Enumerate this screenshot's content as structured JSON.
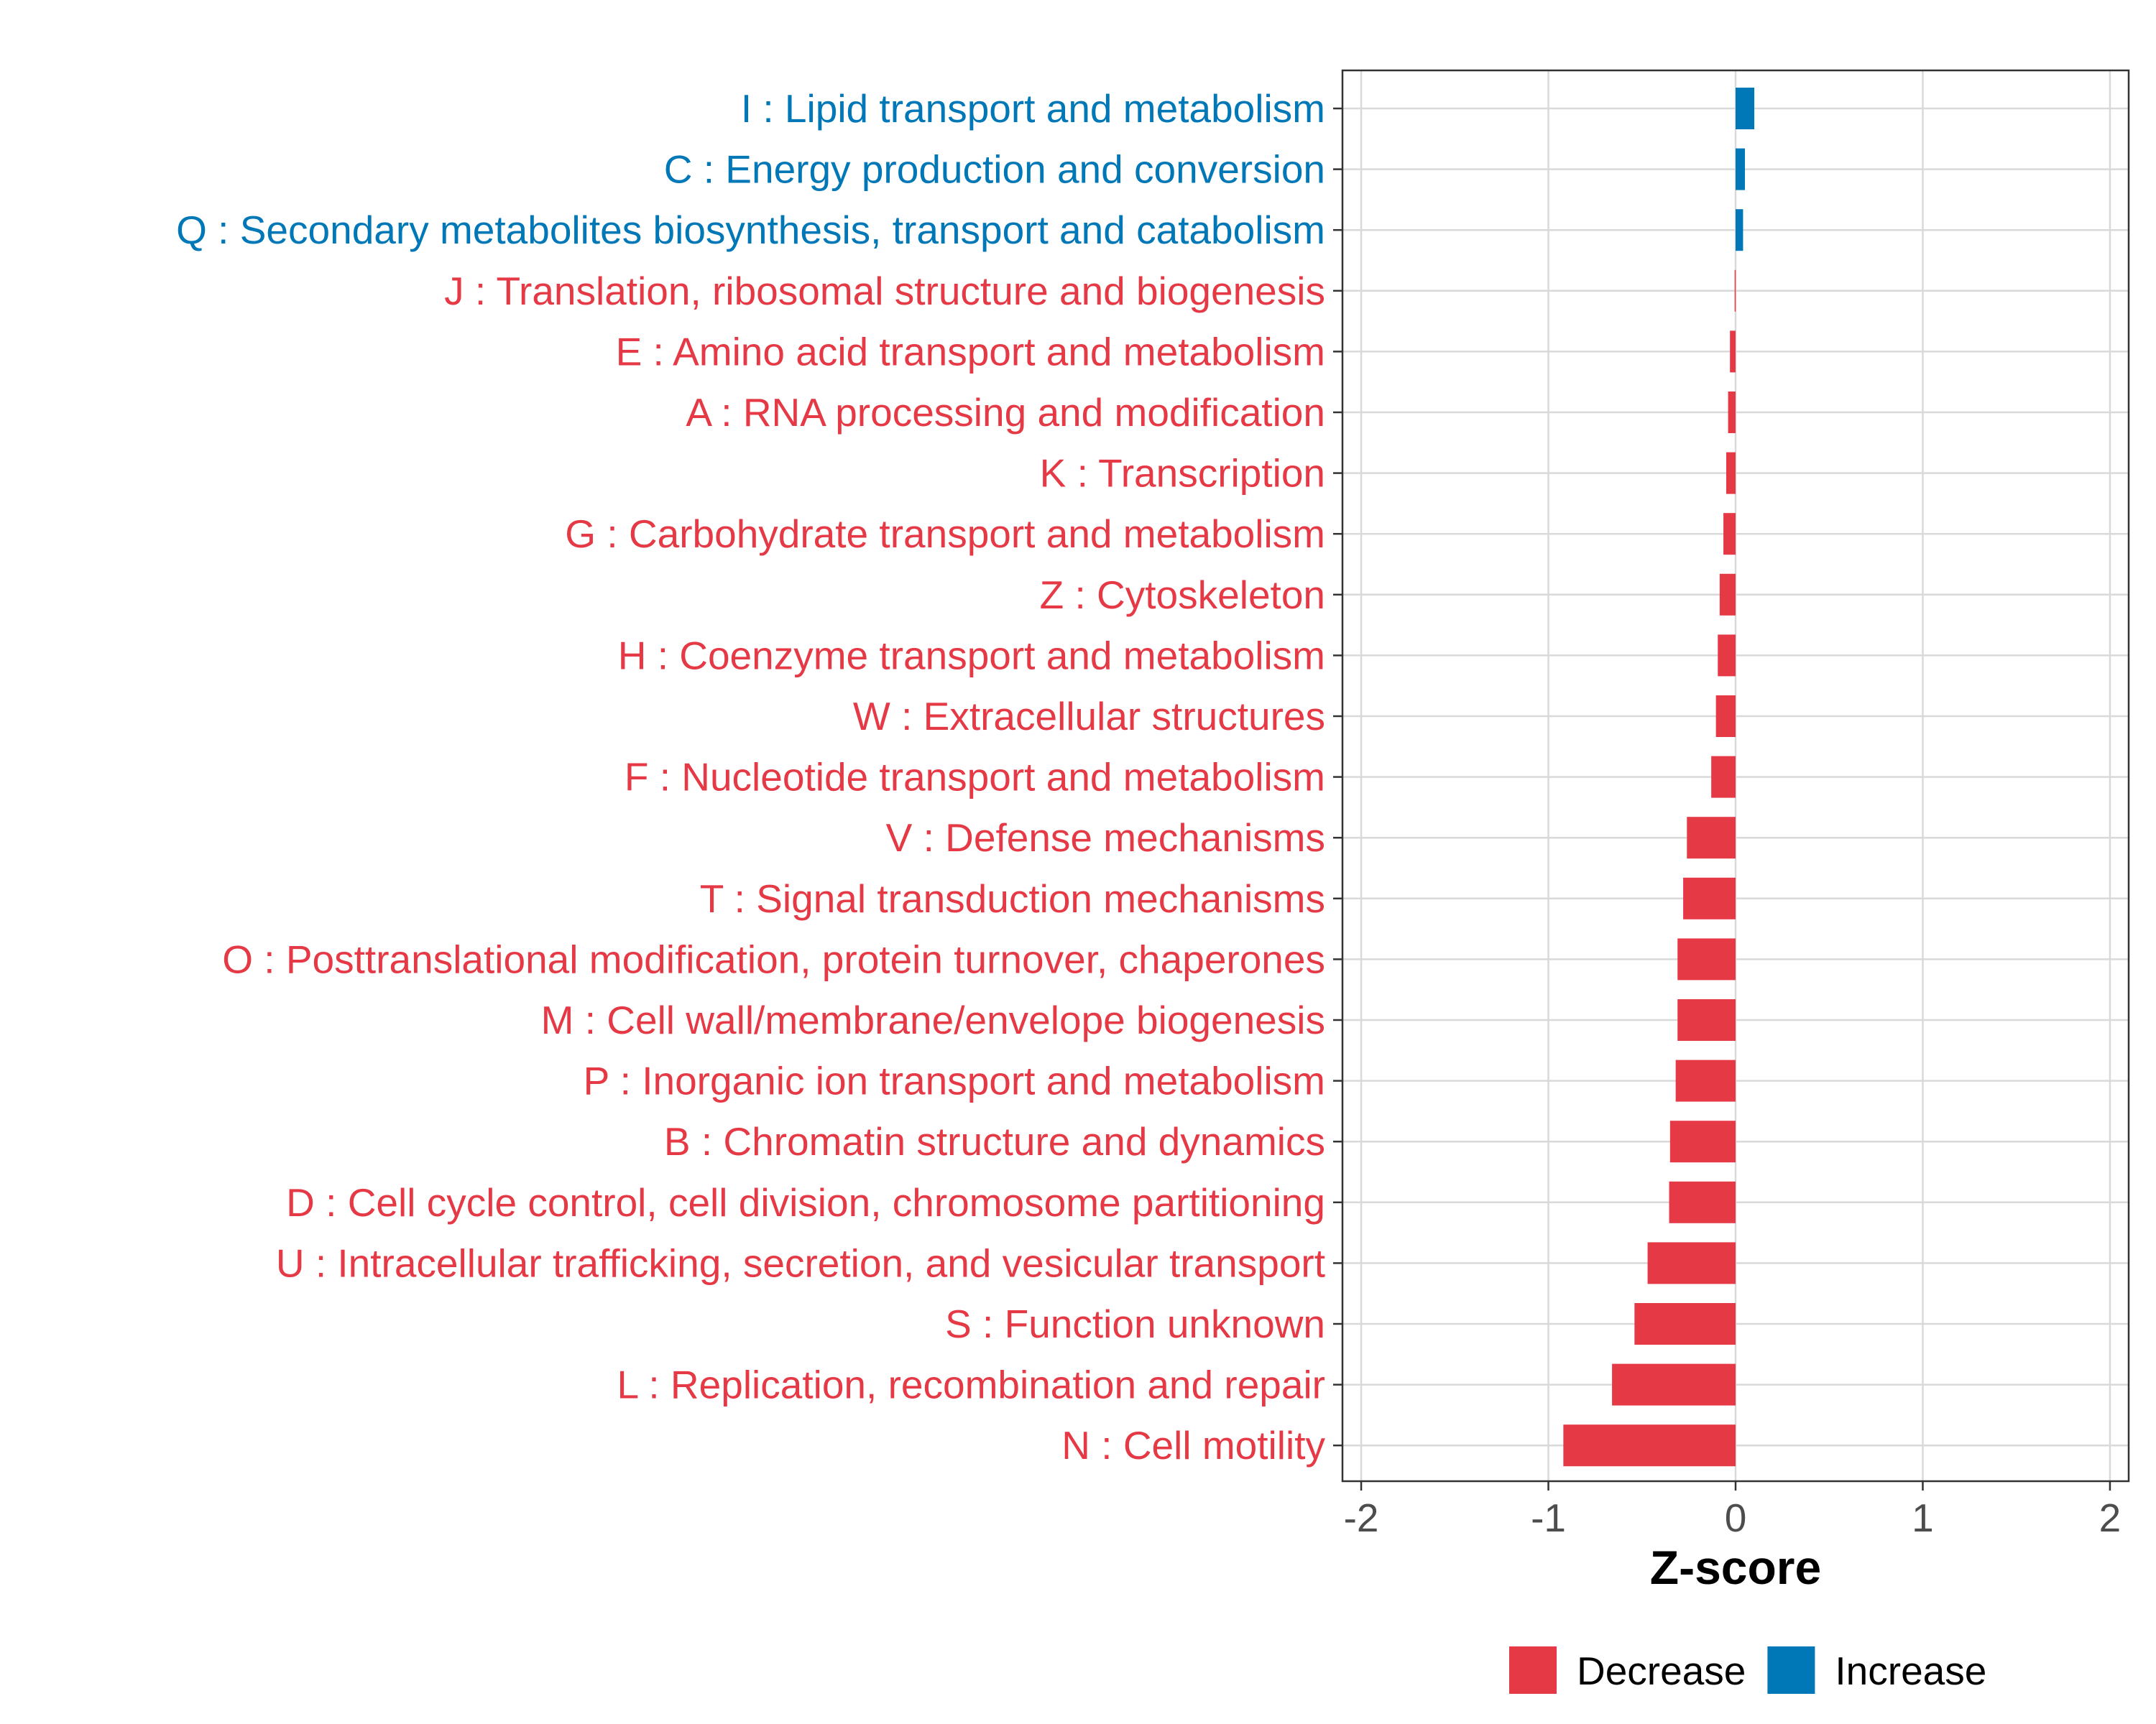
{
  "chart_data": {
    "type": "bar",
    "orientation": "horizontal",
    "xlabel": "Z-score",
    "xlim": [
      -2.1,
      2.1
    ],
    "xticks": [
      -2,
      -1,
      0,
      1,
      2
    ],
    "xtick_labels": [
      "-2",
      "-1",
      "0",
      "1",
      "2"
    ],
    "grid": true,
    "legend_position": "bottom",
    "legend": [
      {
        "label": "Decrease",
        "color": "#e63946"
      },
      {
        "label": "Increase",
        "color": "#0077b6"
      }
    ],
    "categories": [
      "I : Lipid transport and metabolism",
      "C : Energy production and conversion",
      "Q : Secondary metabolites biosynthesis, transport and catabolism",
      "J : Translation, ribosomal structure and biogenesis",
      "E : Amino acid transport and metabolism",
      "A : RNA processing and modification",
      "K : Transcription",
      "G : Carbohydrate transport and metabolism",
      "Z : Cytoskeleton",
      "H : Coenzyme transport and metabolism",
      "W : Extracellular structures",
      "F : Nucleotide transport and metabolism",
      "V : Defense mechanisms",
      "T : Signal transduction mechanisms",
      "O : Posttranslational modification, protein turnover, chaperones",
      "M : Cell wall/membrane/envelope biogenesis",
      "P : Inorganic ion transport and metabolism",
      "B : Chromatin structure and dynamics",
      "D : Cell cycle control, cell division, chromosome partitioning",
      "U : Intracellular trafficking, secretion, and vesicular transport",
      "S : Function unknown",
      "L : Replication, recombination and repair",
      "N : Cell motility"
    ],
    "values": [
      0.1,
      0.05,
      0.04,
      -0.005,
      -0.03,
      -0.04,
      -0.05,
      -0.065,
      -0.085,
      -0.095,
      -0.105,
      -0.13,
      -0.26,
      -0.28,
      -0.31,
      -0.31,
      -0.32,
      -0.35,
      -0.355,
      -0.47,
      -0.54,
      -0.66,
      -0.92
    ],
    "directions": [
      "Increase",
      "Increase",
      "Increase",
      "Decrease",
      "Decrease",
      "Decrease",
      "Decrease",
      "Decrease",
      "Decrease",
      "Decrease",
      "Decrease",
      "Decrease",
      "Decrease",
      "Decrease",
      "Decrease",
      "Decrease",
      "Decrease",
      "Decrease",
      "Decrease",
      "Decrease",
      "Decrease",
      "Decrease",
      "Decrease"
    ]
  }
}
